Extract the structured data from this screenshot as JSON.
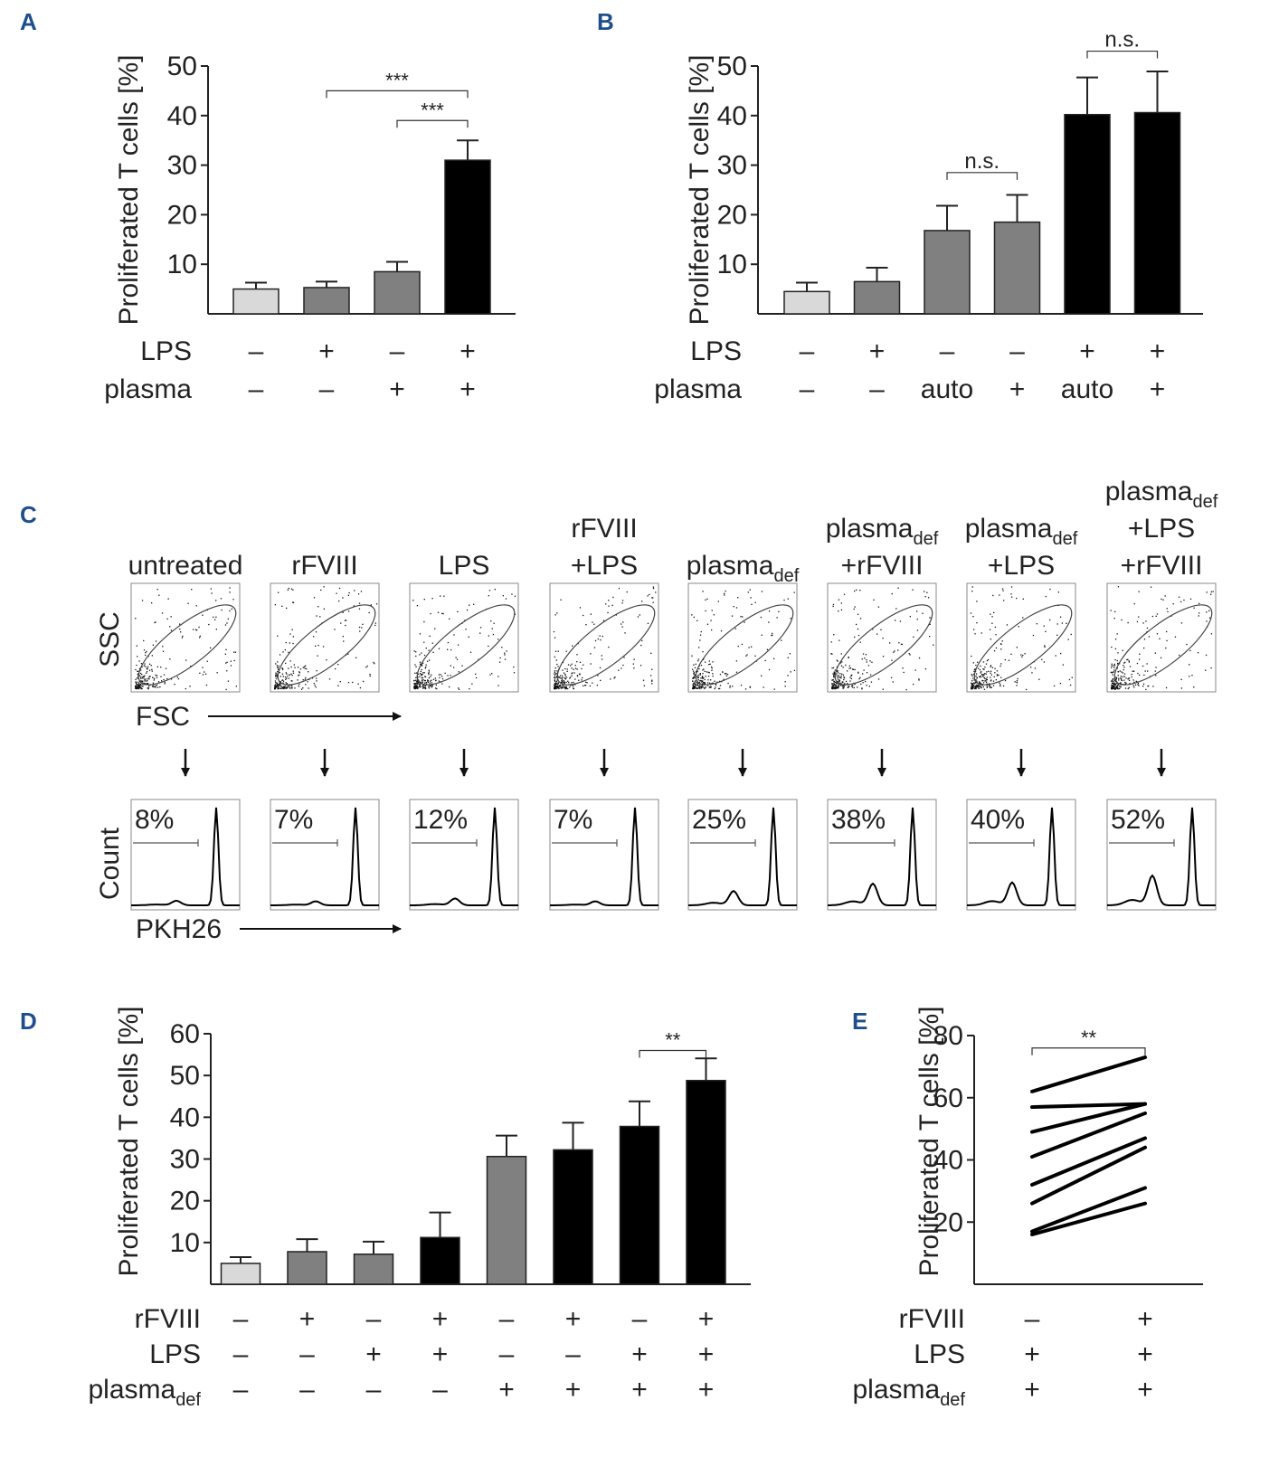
{
  "panel_labels": [
    "A",
    "B",
    "C",
    "D",
    "E"
  ],
  "colors": {
    "light": "#d9d9d9",
    "gray": "#808080",
    "black": "#000000",
    "label": "#1f4e8c"
  },
  "chart_data": [
    {
      "panel": "A",
      "type": "bar",
      "ylabel": "Proliferated T cells [%]",
      "ylim": [
        0,
        50
      ],
      "yticks": [
        10,
        20,
        30,
        40,
        50
      ],
      "values": [
        5,
        5.3,
        8.5,
        31
      ],
      "errors": [
        1.3,
        1.2,
        2,
        4
      ],
      "fills": [
        "light",
        "gray",
        "gray",
        "black"
      ],
      "conditions": [
        {
          "name": "LPS",
          "values": [
            "–",
            "+",
            "–",
            "+"
          ]
        },
        {
          "name": "plasma",
          "values": [
            "–",
            "–",
            "+",
            "+"
          ]
        }
      ],
      "significance": [
        {
          "from": 1,
          "to": 3,
          "label": "***",
          "y": 45
        },
        {
          "from": 2,
          "to": 3,
          "label": "***",
          "y": 39
        }
      ]
    },
    {
      "panel": "B",
      "type": "bar",
      "ylabel": "Proliferated T cells [%]",
      "ylim": [
        0,
        50
      ],
      "yticks": [
        10,
        20,
        30,
        40,
        50
      ],
      "values": [
        4.5,
        6.5,
        16.8,
        18.5,
        40.2,
        40.6
      ],
      "errors": [
        1.8,
        2.8,
        5,
        5.5,
        7.5,
        8.3
      ],
      "fills": [
        "light",
        "gray",
        "gray",
        "gray",
        "black",
        "black"
      ],
      "conditions": [
        {
          "name": "LPS",
          "values": [
            "–",
            "+",
            "–",
            "–",
            "+",
            "+"
          ]
        },
        {
          "name": "plasma",
          "values": [
            "–",
            "–",
            "auto",
            "+",
            "auto",
            "+"
          ]
        }
      ],
      "significance": [
        {
          "from": 2,
          "to": 3,
          "label": "n.s.",
          "y": 28.5
        },
        {
          "from": 4,
          "to": 5,
          "label": "n.s.",
          "y": 53
        }
      ]
    },
    {
      "panel": "D",
      "type": "bar",
      "ylabel": "Proliferated T cells [%]",
      "ylim": [
        0,
        60
      ],
      "yticks": [
        10,
        20,
        30,
        40,
        50,
        60
      ],
      "values": [
        5,
        7.8,
        7.2,
        11.2,
        30.6,
        32.2,
        37.8,
        48.8
      ],
      "errors": [
        1.5,
        3,
        3,
        6,
        5,
        6.5,
        6,
        5.3
      ],
      "fills": [
        "light",
        "gray",
        "gray",
        "black",
        "gray",
        "black",
        "black",
        "black"
      ],
      "conditions": [
        {
          "name": "rFVIII",
          "values": [
            "–",
            "+",
            "–",
            "+",
            "–",
            "+",
            "–",
            "+"
          ]
        },
        {
          "name": "LPS",
          "values": [
            "–",
            "–",
            "+",
            "+",
            "–",
            "–",
            "+",
            "+"
          ]
        },
        {
          "name": "plasma",
          "sub": "def",
          "values": [
            "–",
            "–",
            "–",
            "–",
            "+",
            "+",
            "+",
            "+"
          ]
        }
      ],
      "significance": [
        {
          "from": 6,
          "to": 7,
          "label": "**",
          "y": 56
        }
      ]
    },
    {
      "panel": "E",
      "type": "line",
      "ylabel": "Proliferated T cells [%]",
      "ylim": [
        0,
        80
      ],
      "yticks": [
        20,
        40,
        60,
        80
      ],
      "pairs": [
        [
          62,
          73
        ],
        [
          57,
          58
        ],
        [
          49,
          58
        ],
        [
          41,
          55
        ],
        [
          32,
          47
        ],
        [
          26,
          44
        ],
        [
          17,
          31
        ],
        [
          16,
          26
        ]
      ],
      "conditions": [
        {
          "name": "rFVIII",
          "values": [
            "–",
            "+"
          ]
        },
        {
          "name": "LPS",
          "values": [
            "+",
            "+"
          ]
        },
        {
          "name": "plasma",
          "sub": "def",
          "values": [
            "+",
            "+"
          ]
        }
      ],
      "significance": [
        {
          "from": 0,
          "to": 1,
          "label": "**",
          "y": 76
        }
      ]
    }
  ],
  "flow": {
    "top_axes": {
      "y": "SSC",
      "x": "FSC"
    },
    "bottom_axes": {
      "y": "Count",
      "x": "PKH26"
    },
    "samples": [
      {
        "lines": [
          {
            "t": "untreated"
          }
        ],
        "percent": "8%",
        "pct_value": 8
      },
      {
        "lines": [
          {
            "t": "rFVIII"
          }
        ],
        "percent": "7%",
        "pct_value": 7
      },
      {
        "lines": [
          {
            "t": "LPS"
          }
        ],
        "percent": "12%",
        "pct_value": 12
      },
      {
        "lines": [
          {
            "t": "rFVIII"
          },
          {
            "t": "+LPS"
          }
        ],
        "percent": "7%",
        "pct_value": 7
      },
      {
        "lines": [
          {
            "t": "plasma",
            "sub": "def"
          }
        ],
        "percent": "25%",
        "pct_value": 25
      },
      {
        "lines": [
          {
            "t": "plasma",
            "sub": "def"
          },
          {
            "t": "+rFVIII"
          }
        ],
        "percent": "38%",
        "pct_value": 38
      },
      {
        "lines": [
          {
            "t": "plasma",
            "sub": "def"
          },
          {
            "t": "+LPS"
          }
        ],
        "percent": "40%",
        "pct_value": 40
      },
      {
        "lines": [
          {
            "t": "plasma",
            "sub": "def"
          },
          {
            "t": "+LPS"
          },
          {
            "t": "+rFVIII"
          }
        ],
        "percent": "52%",
        "pct_value": 52
      }
    ]
  }
}
